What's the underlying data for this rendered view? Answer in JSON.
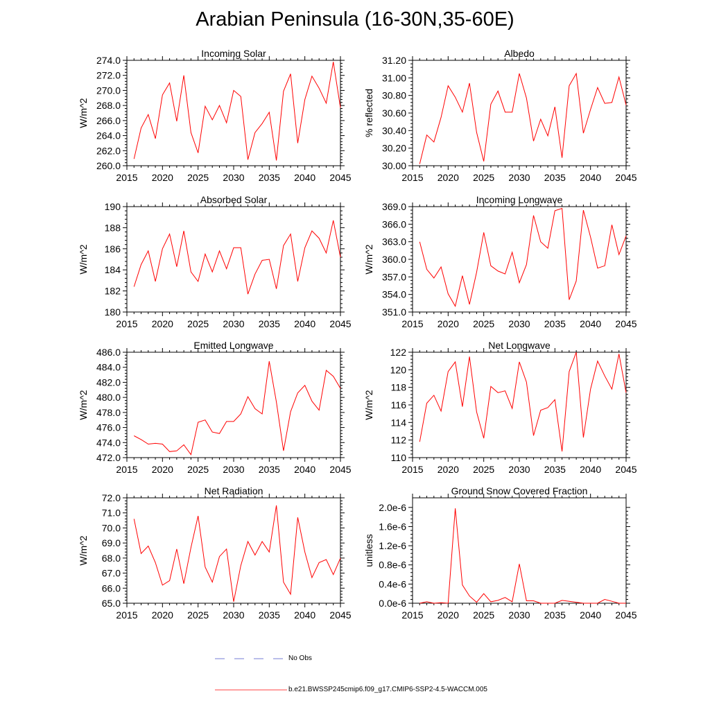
{
  "title": "Arabian Peninsula (16-30N,35-60E)",
  "legend": {
    "obs_label": "No Obs",
    "obs_color": "#4a54c8",
    "model_label": "b.e21.BWSSP245cmip6.f09_g17.CMIP6-SSP2-4.5-WACCM.005",
    "model_color": "#ff0000"
  },
  "chart_data": [
    {
      "type": "line",
      "title": "Incoming Solar",
      "ylabel": "W/m^2",
      "xlim": [
        2015,
        2045
      ],
      "ylim": [
        260,
        274
      ],
      "xticks": [
        2015,
        2020,
        2025,
        2030,
        2035,
        2040,
        2045
      ],
      "yticks": [
        "260.0",
        "262.0",
        "264.0",
        "266.0",
        "268.0",
        "270.0",
        "272.0",
        "274.0"
      ],
      "yticks_values": [
        260,
        262,
        264,
        266,
        268,
        270,
        272,
        274
      ],
      "x": [
        2016,
        2017,
        2018,
        2019,
        2020,
        2021,
        2022,
        2023,
        2024,
        2025,
        2026,
        2027,
        2028,
        2029,
        2030,
        2031,
        2032,
        2033,
        2034,
        2035,
        2036,
        2037,
        2038,
        2039,
        2040,
        2041,
        2042,
        2043,
        2044,
        2045
      ],
      "values": [
        260.9,
        265.0,
        266.8,
        263.6,
        269.4,
        271.0,
        265.9,
        272.0,
        264.4,
        261.7,
        267.9,
        266.1,
        268.0,
        265.7,
        270.0,
        269.2,
        260.8,
        264.4,
        265.6,
        267.1,
        260.7,
        269.9,
        272.2,
        263.0,
        268.8,
        271.9,
        270.3,
        268.3,
        273.8,
        267.7
      ]
    },
    {
      "type": "line",
      "title": "Albedo",
      "ylabel": "% reflected",
      "xlim": [
        2015,
        2045
      ],
      "ylim": [
        30.0,
        31.2
      ],
      "xticks": [
        2015,
        2020,
        2025,
        2030,
        2035,
        2040,
        2045
      ],
      "yticks": [
        "30.00",
        "30.20",
        "30.40",
        "30.60",
        "30.80",
        "31.00",
        "31.20"
      ],
      "yticks_values": [
        30.0,
        30.2,
        30.4,
        30.6,
        30.8,
        31.0,
        31.2
      ],
      "x": [
        2016,
        2017,
        2018,
        2019,
        2020,
        2021,
        2022,
        2023,
        2024,
        2025,
        2026,
        2027,
        2028,
        2029,
        2030,
        2031,
        2032,
        2033,
        2034,
        2035,
        2036,
        2037,
        2038,
        2039,
        2040,
        2041,
        2042,
        2043,
        2044,
        2045
      ],
      "values": [
        30.02,
        30.35,
        30.27,
        30.55,
        30.91,
        30.78,
        30.61,
        30.94,
        30.38,
        30.05,
        30.7,
        30.85,
        30.61,
        30.61,
        31.05,
        30.77,
        30.28,
        30.53,
        30.34,
        30.67,
        30.09,
        30.91,
        31.05,
        30.37,
        30.64,
        30.89,
        30.71,
        30.72,
        31.01,
        30.69
      ]
    },
    {
      "type": "line",
      "title": "Absorbed Solar",
      "ylabel": "W/m^2",
      "xlim": [
        2015,
        2045
      ],
      "ylim": [
        180,
        190
      ],
      "xticks": [
        2015,
        2020,
        2025,
        2030,
        2035,
        2040,
        2045
      ],
      "yticks": [
        "180",
        "182",
        "184",
        "186",
        "188",
        "190"
      ],
      "yticks_values": [
        180,
        182,
        184,
        186,
        188,
        190
      ],
      "x": [
        2016,
        2017,
        2018,
        2019,
        2020,
        2021,
        2022,
        2023,
        2024,
        2025,
        2026,
        2027,
        2028,
        2029,
        2030,
        2031,
        2032,
        2033,
        2034,
        2035,
        2036,
        2037,
        2038,
        2039,
        2040,
        2041,
        2042,
        2043,
        2044,
        2045
      ],
      "values": [
        182.4,
        184.5,
        185.8,
        182.9,
        186.0,
        187.4,
        184.3,
        187.7,
        183.8,
        182.9,
        185.5,
        183.8,
        185.8,
        184.1,
        186.1,
        186.1,
        181.7,
        183.6,
        184.9,
        185.0,
        182.2,
        186.3,
        187.4,
        182.9,
        186.1,
        187.7,
        187.0,
        185.6,
        188.7,
        185.2
      ]
    },
    {
      "type": "line",
      "title": "Incoming Longwave",
      "ylabel": "W/m^2",
      "xlim": [
        2015,
        2045
      ],
      "ylim": [
        351,
        369
      ],
      "xticks": [
        2015,
        2020,
        2025,
        2030,
        2035,
        2040,
        2045
      ],
      "yticks": [
        "351.0",
        "354.0",
        "357.0",
        "360.0",
        "363.0",
        "366.0",
        "369.0"
      ],
      "yticks_values": [
        351,
        354,
        357,
        360,
        363,
        366,
        369
      ],
      "x": [
        2016,
        2017,
        2018,
        2019,
        2020,
        2021,
        2022,
        2023,
        2024,
        2025,
        2026,
        2027,
        2028,
        2029,
        2030,
        2031,
        2032,
        2033,
        2034,
        2035,
        2036,
        2037,
        2038,
        2039,
        2040,
        2041,
        2042,
        2043,
        2044,
        2045
      ],
      "values": [
        363.0,
        358.3,
        356.8,
        358.7,
        354.1,
        352.0,
        357.2,
        352.3,
        357.8,
        364.6,
        358.9,
        358.0,
        357.5,
        361.2,
        356.0,
        359.1,
        367.5,
        363.0,
        361.9,
        368.3,
        368.7,
        353.1,
        356.3,
        368.4,
        363.8,
        358.5,
        358.9,
        365.9,
        360.8,
        364.0
      ]
    },
    {
      "type": "line",
      "title": "Emitted Longwave",
      "ylabel": "W/m^2",
      "xlim": [
        2015,
        2045
      ],
      "ylim": [
        472,
        486
      ],
      "xticks": [
        2015,
        2020,
        2025,
        2030,
        2035,
        2040,
        2045
      ],
      "yticks": [
        "472.0",
        "474.0",
        "476.0",
        "478.0",
        "480.0",
        "482.0",
        "484.0",
        "486.0"
      ],
      "yticks_values": [
        472,
        474,
        476,
        478,
        480,
        482,
        484,
        486
      ],
      "x": [
        2016,
        2017,
        2018,
        2019,
        2020,
        2021,
        2022,
        2023,
        2024,
        2025,
        2026,
        2027,
        2028,
        2029,
        2030,
        2031,
        2032,
        2033,
        2034,
        2035,
        2036,
        2037,
        2038,
        2039,
        2040,
        2041,
        2042,
        2043,
        2044,
        2045
      ],
      "values": [
        474.9,
        474.4,
        473.8,
        473.9,
        473.8,
        472.8,
        472.9,
        473.7,
        472.4,
        476.7,
        477.0,
        475.4,
        475.2,
        476.8,
        476.8,
        477.8,
        480.1,
        478.5,
        477.8,
        484.8,
        479.4,
        472.9,
        478.1,
        480.6,
        481.6,
        479.5,
        478.3,
        483.6,
        482.8,
        481.2
      ]
    },
    {
      "type": "line",
      "title": "Net Longwave",
      "ylabel": "W/m^2",
      "xlim": [
        2015,
        2045
      ],
      "ylim": [
        110,
        122
      ],
      "xticks": [
        2015,
        2020,
        2025,
        2030,
        2035,
        2040,
        2045
      ],
      "yticks": [
        "110",
        "112",
        "114",
        "116",
        "118",
        "120",
        "122"
      ],
      "yticks_values": [
        110,
        112,
        114,
        116,
        118,
        120,
        122
      ],
      "x": [
        2016,
        2017,
        2018,
        2019,
        2020,
        2021,
        2022,
        2023,
        2024,
        2025,
        2026,
        2027,
        2028,
        2029,
        2030,
        2031,
        2032,
        2033,
        2034,
        2035,
        2036,
        2037,
        2038,
        2039,
        2040,
        2041,
        2042,
        2043,
        2044,
        2045
      ],
      "values": [
        111.8,
        116.2,
        117.1,
        115.3,
        119.8,
        120.9,
        115.8,
        121.5,
        115.2,
        112.2,
        118.1,
        117.4,
        117.6,
        115.6,
        120.9,
        118.6,
        112.5,
        115.4,
        115.7,
        116.6,
        110.7,
        119.8,
        122.0,
        112.3,
        117.8,
        121.0,
        119.3,
        117.8,
        121.8,
        117.4
      ]
    },
    {
      "type": "line",
      "title": "Net Radiation",
      "ylabel": "W/m^2",
      "xlim": [
        2015,
        2045
      ],
      "ylim": [
        65,
        72
      ],
      "xticks": [
        2015,
        2020,
        2025,
        2030,
        2035,
        2040,
        2045
      ],
      "yticks": [
        "65.0",
        "66.0",
        "67.0",
        "68.0",
        "69.0",
        "70.0",
        "71.0",
        "72.0"
      ],
      "yticks_values": [
        65,
        66,
        67,
        68,
        69,
        70,
        71,
        72
      ],
      "x": [
        2016,
        2017,
        2018,
        2019,
        2020,
        2021,
        2022,
        2023,
        2024,
        2025,
        2026,
        2027,
        2028,
        2029,
        2030,
        2031,
        2032,
        2033,
        2034,
        2035,
        2036,
        2037,
        2038,
        2039,
        2040,
        2041,
        2042,
        2043,
        2044,
        2045
      ],
      "values": [
        70.6,
        68.3,
        68.8,
        67.7,
        66.2,
        66.5,
        68.6,
        66.3,
        68.7,
        70.8,
        67.4,
        66.4,
        68.1,
        68.6,
        65.1,
        67.5,
        69.1,
        68.2,
        69.1,
        68.4,
        71.5,
        66.4,
        65.6,
        70.7,
        68.4,
        66.7,
        67.7,
        67.9,
        66.9,
        68.0
      ]
    },
    {
      "type": "line",
      "title": "Ground Snow Covered Fraction",
      "ylabel": "unitless",
      "xlim": [
        2015,
        2045
      ],
      "ylim": [
        0,
        2.2e-06
      ],
      "xticks": [
        2015,
        2020,
        2025,
        2030,
        2035,
        2040,
        2045
      ],
      "yticks": [
        "0.0e-6",
        "0.4e-6",
        "0.8e-6",
        "1.2e-6",
        "1.6e-6",
        "2.0e-6"
      ],
      "yticks_values": [
        0,
        4e-07,
        8e-07,
        1.2e-06,
        1.6e-06,
        2e-06
      ],
      "x": [
        2016,
        2017,
        2018,
        2019,
        2020,
        2021,
        2022,
        2023,
        2024,
        2025,
        2026,
        2027,
        2028,
        2029,
        2030,
        2031,
        2032,
        2033,
        2034,
        2035,
        2036,
        2037,
        2038,
        2039,
        2040,
        2041,
        2042,
        2043,
        2044,
        2045
      ],
      "values": [
        0.0,
        3e-08,
        0.0,
        1e-08,
        0.0,
        1.98e-06,
        3.8e-07,
        1.5e-07,
        2e-08,
        2e-07,
        3e-08,
        6e-08,
        1.2e-07,
        3e-08,
        8.2e-07,
        5e-08,
        5e-08,
        0.0,
        0.0,
        0.0,
        6e-08,
        4e-08,
        2e-08,
        0.0,
        0.0,
        0.0,
        8e-08,
        4e-08,
        0.0,
        0.0
      ]
    }
  ]
}
